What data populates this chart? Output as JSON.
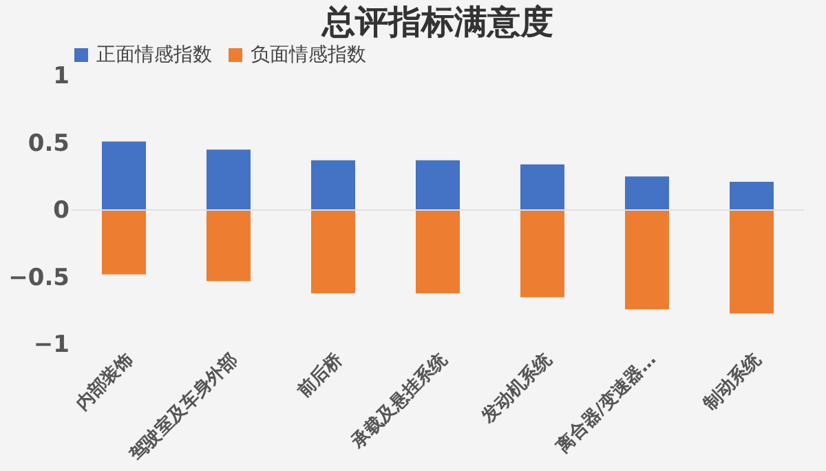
{
  "chart_data": {
    "type": "bar",
    "title": "总评指标满意度",
    "stacked": true,
    "categories": [
      "内部装饰",
      "驾驶室及车身外部",
      "前后桥",
      "承载及悬挂系统",
      "发动机系统",
      "离合器/变速器…",
      "制动系统"
    ],
    "series": [
      {
        "name": "正面情感指数",
        "color": "#4472c4",
        "values": [
          0.51,
          0.45,
          0.37,
          0.37,
          0.34,
          0.25,
          0.21
        ]
      },
      {
        "name": "负面情感指数",
        "color": "#ed7d31",
        "values": [
          -0.48,
          -0.53,
          -0.62,
          -0.62,
          -0.65,
          -0.74,
          -0.77
        ]
      }
    ],
    "ylim": [
      -1,
      1
    ],
    "yticks": [
      -1,
      -0.5,
      0,
      0.5,
      1
    ],
    "grid": false,
    "legend": "top",
    "ref_lines": [
      {
        "axis": "y",
        "value": 0,
        "color": "#e0e0e0"
      }
    ]
  }
}
